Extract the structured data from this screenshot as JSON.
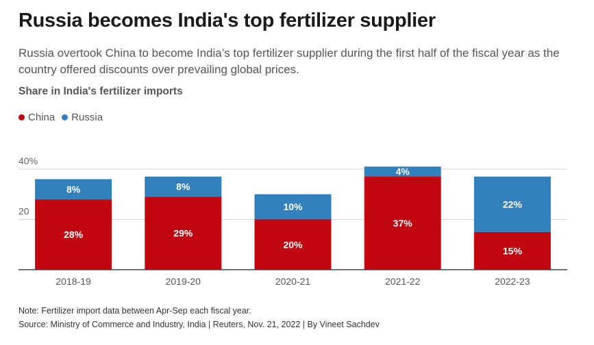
{
  "header": {
    "title": "Russia becomes India's top fertilizer supplier",
    "subtitle": "Russia overtook China to become India’s top fertilizer supplier during the first half of the fiscal year as the country offered discounts over prevailing global prices."
  },
  "footer": {
    "note": "Note: Fertilizer import data between Apr-Sep each fiscal year.",
    "source": "Source: Ministry of Commerce and Industry, India | Reuters, Nov. 21, 2022 | By Vineet Sachdev"
  },
  "colors": {
    "china": "#c1070f",
    "russia": "#3281bd"
  },
  "chart_data": {
    "type": "bar",
    "stacked": true,
    "title": "Share in India's fertilizer imports",
    "categories": [
      "2018-19",
      "2019-20",
      "2020-21",
      "2021-22",
      "2022-23"
    ],
    "series": [
      {
        "name": "China",
        "values": [
          28,
          29,
          20,
          37,
          15
        ],
        "labels": [
          "28%",
          "29%",
          "20%",
          "37%",
          "15%"
        ]
      },
      {
        "name": "Russia",
        "values": [
          8,
          8,
          10,
          4,
          22
        ],
        "labels": [
          "8%",
          "8%",
          "10%",
          "4%",
          "22%"
        ]
      }
    ],
    "yticks": [
      {
        "value": 20,
        "label": "20"
      },
      {
        "value": 40,
        "label": "40%"
      }
    ],
    "ylim": [
      0,
      40
    ],
    "xlabel": "",
    "ylabel": "",
    "grid": true,
    "legend": "top-left"
  }
}
